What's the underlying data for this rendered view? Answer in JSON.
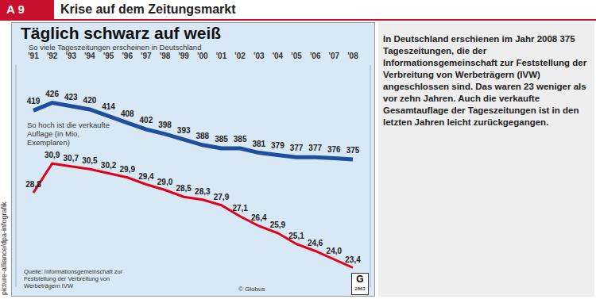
{
  "header": {
    "label": "A 9",
    "title": "Krise auf dem Zeitungsmarkt"
  },
  "chart_data": {
    "type": "line",
    "title": "Täglich schwarz auf weiß",
    "subtitle": "So viele Tageszeitungen erscheinen in Deutschland",
    "categories": [
      "'91",
      "'92",
      "'93",
      "'94",
      "'95",
      "'96",
      "'97",
      "'98",
      "'99",
      "'00",
      "'01",
      "'02",
      "'03",
      "'04",
      "'05",
      "'06",
      "'07",
      "'08"
    ],
    "series": [
      {
        "color": "#1f4e9c",
        "values": [
          419,
          426,
          423,
          420,
          414,
          408,
          402,
          398,
          393,
          388,
          385,
          385,
          381,
          379,
          377,
          377,
          376,
          375
        ]
      },
      {
        "name": "So hoch ist die verkaufte Auflage (in Mio. Exemplaren)",
        "color": "#e3001b",
        "axis": "y2",
        "values": [
          28.8,
          30.9,
          30.7,
          30.5,
          30.2,
          29.9,
          29.4,
          29.0,
          28.5,
          28.3,
          27.9,
          27.1,
          26.4,
          25.9,
          25.1,
          24.6,
          24.0,
          23.4
        ],
        "value_labels": [
          "28,8",
          "30,9",
          "30,7",
          "30,5",
          "30,2",
          "29,9",
          "29,4",
          "29,0",
          "28,5",
          "28,3",
          "27,9",
          "27,1",
          "26,4",
          "25,9",
          "25,1",
          "24,6",
          "24,0",
          "23,4"
        ]
      }
    ],
    "ylim": [
      260,
      460
    ],
    "yticks": [],
    "y2lim": [
      22,
      38
    ],
    "y2ticks": [],
    "grid": false,
    "data_labels": true,
    "tick_labels": "x",
    "source": "Quelle: Informationsgemeinschaft zur Feststellung der Verbreitung von Werbeträgern IVW",
    "copyright": "© Globus",
    "logo_text": "G",
    "logo_number": "2863",
    "credit": "picture-alliance/dpa-infografik"
  },
  "text_panel": {
    "text": "In Deutschland erschienen im Jahr 2008 375 Tageszeitungen, die der Informationsgemeinschaft zur Feststellung der Verbreitung von Werbeträgern (IVW) angeschlossen sind. Das waren 23 weniger als vor zehn Jahren. Auch die verkaufte Gesamtauflage der Tageszeitungen ist in den letzten Jahren leicht zurückgegangen."
  }
}
